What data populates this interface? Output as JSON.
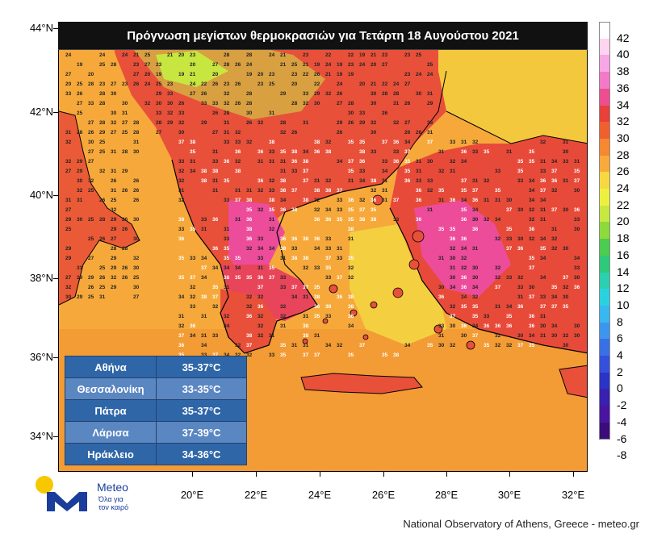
{
  "title": "Πρόγνωση μεγίστων θερμοκρασιών για Τετάρτη 18 Αυγούστου 2021",
  "map": {
    "lat_labels": [
      "44°N",
      "42°N",
      "40°N",
      "38°N",
      "36°N",
      "34°N"
    ],
    "lon_labels": [
      "20°E",
      "22°E",
      "24°E",
      "26°E",
      "28°E",
      "30°E",
      "32°E"
    ],
    "palette": {
      "sea_warm": "#f6a93a",
      "sea_hot": "#f08a2a",
      "aegean": "#f4d040",
      "land_hot": "#e8463e",
      "land_veryhot": "#ec3c8c",
      "land_mild": "#c8e640",
      "coast": "#000000"
    }
  },
  "city_table": {
    "rows": [
      {
        "city": "Αθήνα",
        "range": "35-37°C"
      },
      {
        "city": "Θεσσαλονίκη",
        "range": "33-35°C"
      },
      {
        "city": "Πάτρα",
        "range": "35-37°C"
      },
      {
        "city": "Λάρισα",
        "range": "37-39°C"
      },
      {
        "city": "Ηράκλειο",
        "range": "34-36°C"
      }
    ]
  },
  "colorbar": {
    "levels": [
      "42",
      "40",
      "38",
      "36",
      "34",
      "32",
      "30",
      "28",
      "26",
      "24",
      "22",
      "20",
      "18",
      "16",
      "14",
      "12",
      "10",
      "8",
      "6",
      "4",
      "2",
      "0",
      "-2",
      "-4",
      "-6",
      "-8"
    ],
    "colors": [
      "#ffffff",
      "#ffd4f0",
      "#f7a6e6",
      "#f27ac8",
      "#ee4d8f",
      "#e8403a",
      "#f0602e",
      "#f58830",
      "#f8aa3c",
      "#f6d840",
      "#eef040",
      "#c6e840",
      "#8ed93c",
      "#4ccc50",
      "#2ec97a",
      "#2bd0b0",
      "#2ad2e0",
      "#38b8f0",
      "#3c96ee",
      "#3a70e6",
      "#3450dc",
      "#2a34c6",
      "#3a20b0",
      "#4a14a0",
      "#3c0c7c"
    ]
  },
  "logo": {
    "name": "Meteo",
    "tagline_1": "Όλα για",
    "tagline_2": "τον καιρό"
  },
  "footer": "National Observatory of Athens, Greece - meteo.gr"
}
